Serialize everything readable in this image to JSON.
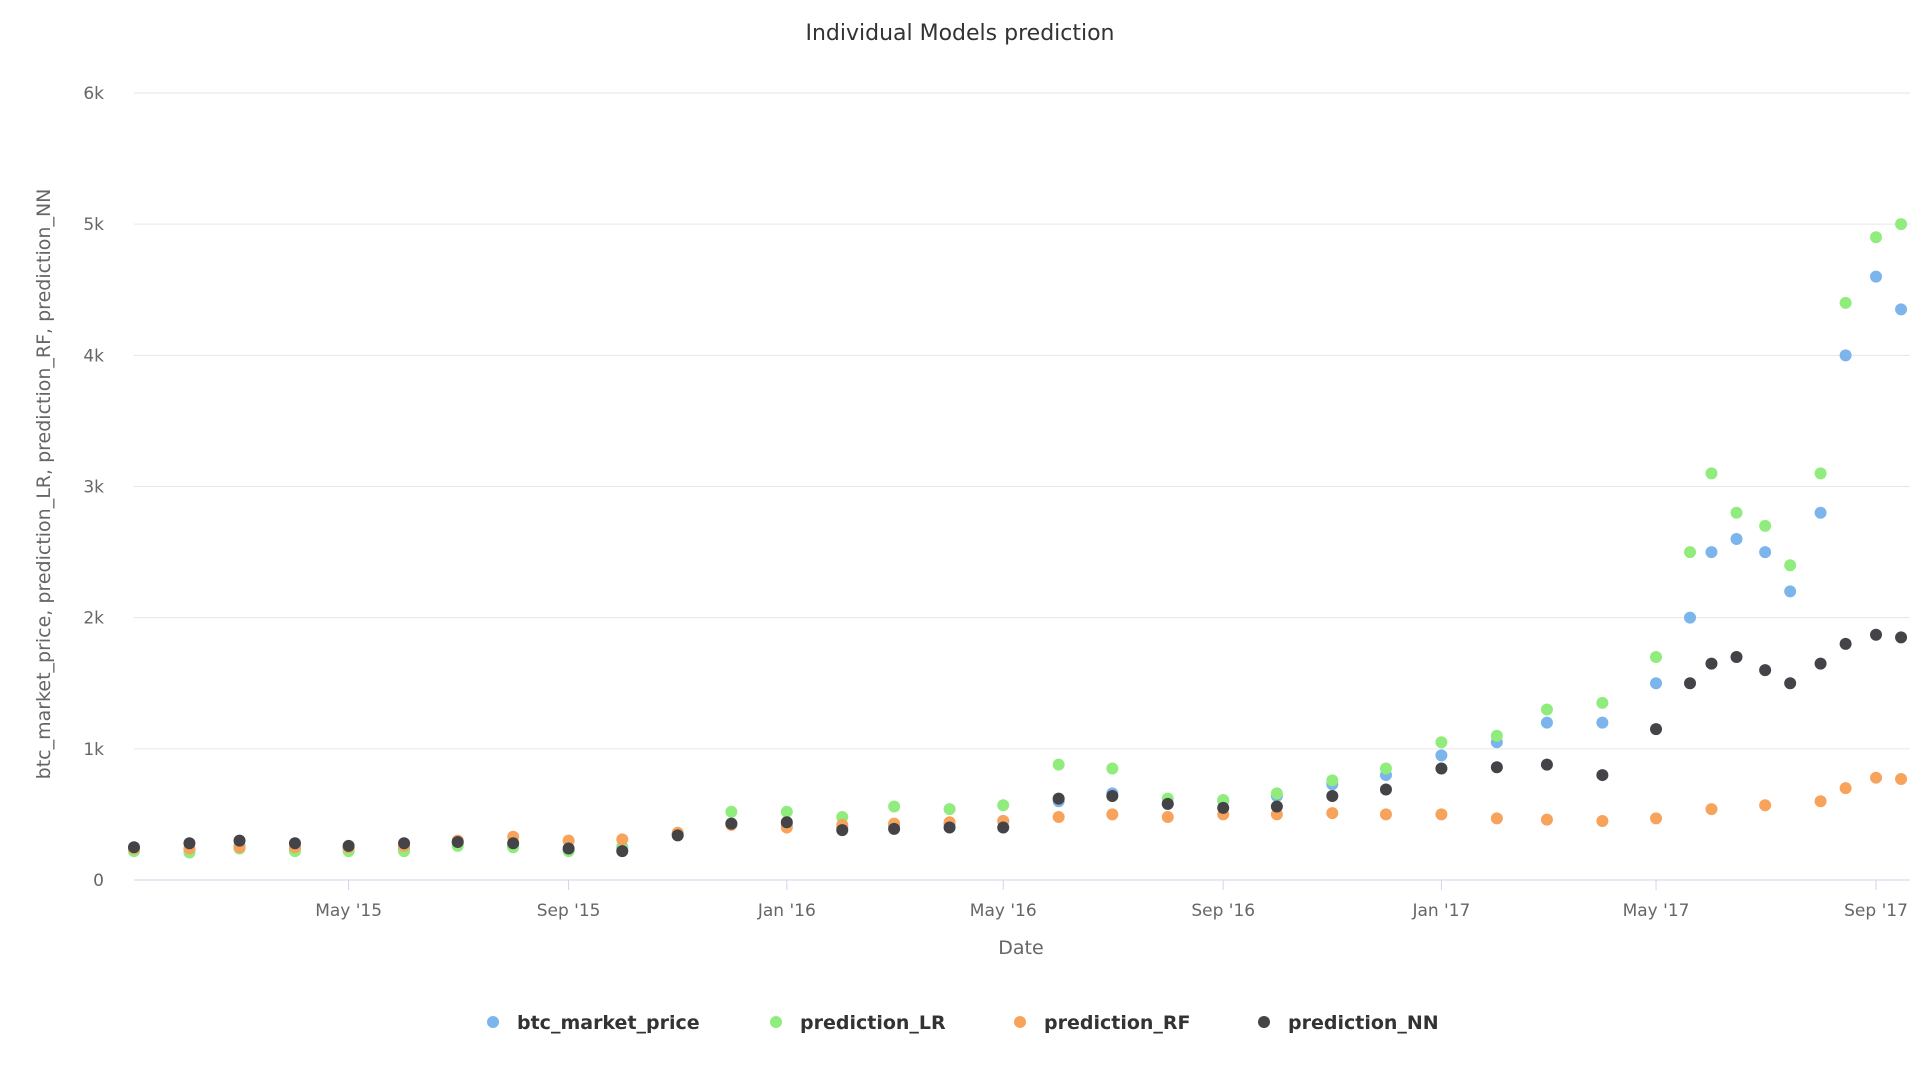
{
  "chart_data": {
    "type": "scatter",
    "title": "Individual Models prediction",
    "xlabel": "Date",
    "ylabel": "btc_market_price, prediction_LR, prediction_RF, prediction_NN",
    "x_range": [
      "2015-01-01",
      "2017-09-20"
    ],
    "ylim": [
      0,
      6000
    ],
    "y_ticks": [
      0,
      1000,
      2000,
      3000,
      4000,
      5000,
      6000
    ],
    "y_tick_labels": [
      "0",
      "1k",
      "2k",
      "3k",
      "4k",
      "5k",
      "6k"
    ],
    "x_ticks": [
      "2015-05-01",
      "2015-09-01",
      "2016-01-01",
      "2016-05-01",
      "2016-09-01",
      "2017-01-01",
      "2017-05-01",
      "2017-09-01"
    ],
    "x_tick_labels": [
      "May '15",
      "Sep '15",
      "Jan '16",
      "May '16",
      "Sep '16",
      "Jan '17",
      "May '17",
      "Sep '17"
    ],
    "grid": true,
    "legend_position": "bottom",
    "series": [
      {
        "name": "btc_market_price",
        "color": "#7cb5ec",
        "points": [
          [
            "2015-01-01",
            240
          ],
          [
            "2015-02-01",
            230
          ],
          [
            "2015-03-01",
            260
          ],
          [
            "2015-04-01",
            240
          ],
          [
            "2015-05-01",
            235
          ],
          [
            "2015-06-01",
            235
          ],
          [
            "2015-07-01",
            280
          ],
          [
            "2015-08-01",
            260
          ],
          [
            "2015-09-01",
            230
          ],
          [
            "2015-10-01",
            250
          ],
          [
            "2015-11-01",
            350
          ],
          [
            "2015-12-01",
            430
          ],
          [
            "2016-01-01",
            420
          ],
          [
            "2016-02-01",
            400
          ],
          [
            "2016-03-01",
            415
          ],
          [
            "2016-04-01",
            425
          ],
          [
            "2016-05-01",
            450
          ],
          [
            "2016-06-01",
            600
          ],
          [
            "2016-07-01",
            660
          ],
          [
            "2016-08-01",
            580
          ],
          [
            "2016-09-01",
            605
          ],
          [
            "2016-10-01",
            640
          ],
          [
            "2016-11-01",
            730
          ],
          [
            "2016-12-01",
            800
          ],
          [
            "2017-01-01",
            950
          ],
          [
            "2017-02-01",
            1050
          ],
          [
            "2017-03-01",
            1200
          ],
          [
            "2017-04-01",
            1200
          ],
          [
            "2017-05-01",
            1500
          ],
          [
            "2017-05-20",
            2000
          ],
          [
            "2017-06-01",
            2500
          ],
          [
            "2017-06-15",
            2600
          ],
          [
            "2017-07-01",
            2500
          ],
          [
            "2017-07-15",
            2200
          ],
          [
            "2017-08-01",
            2800
          ],
          [
            "2017-08-15",
            4000
          ],
          [
            "2017-09-01",
            4600
          ],
          [
            "2017-09-15",
            4350
          ]
        ]
      },
      {
        "name": "prediction_LR",
        "color": "#90ed7d",
        "points": [
          [
            "2015-01-01",
            220
          ],
          [
            "2015-02-01",
            210
          ],
          [
            "2015-03-01",
            240
          ],
          [
            "2015-04-01",
            220
          ],
          [
            "2015-05-01",
            220
          ],
          [
            "2015-06-01",
            220
          ],
          [
            "2015-07-01",
            260
          ],
          [
            "2015-08-01",
            250
          ],
          [
            "2015-09-01",
            220
          ],
          [
            "2015-10-01",
            240
          ],
          [
            "2015-11-01",
            350
          ],
          [
            "2015-12-01",
            520
          ],
          [
            "2016-01-01",
            520
          ],
          [
            "2016-02-01",
            480
          ],
          [
            "2016-03-01",
            560
          ],
          [
            "2016-04-01",
            540
          ],
          [
            "2016-05-01",
            570
          ],
          [
            "2016-06-01",
            880
          ],
          [
            "2016-07-01",
            850
          ],
          [
            "2016-08-01",
            620
          ],
          [
            "2016-09-01",
            610
          ],
          [
            "2016-10-01",
            660
          ],
          [
            "2016-11-01",
            760
          ],
          [
            "2016-12-01",
            850
          ],
          [
            "2017-01-01",
            1050
          ],
          [
            "2017-02-01",
            1100
          ],
          [
            "2017-03-01",
            1300
          ],
          [
            "2017-04-01",
            1350
          ],
          [
            "2017-05-01",
            1700
          ],
          [
            "2017-05-20",
            2500
          ],
          [
            "2017-06-01",
            3100
          ],
          [
            "2017-06-15",
            2800
          ],
          [
            "2017-07-01",
            2700
          ],
          [
            "2017-07-15",
            2400
          ],
          [
            "2017-08-01",
            3100
          ],
          [
            "2017-08-15",
            4400
          ],
          [
            "2017-09-01",
            4900
          ],
          [
            "2017-09-15",
            5000
          ]
        ]
      },
      {
        "name": "prediction_RF",
        "color": "#f7a35c",
        "points": [
          [
            "2015-01-01",
            240
          ],
          [
            "2015-02-01",
            240
          ],
          [
            "2015-03-01",
            250
          ],
          [
            "2015-04-01",
            250
          ],
          [
            "2015-05-01",
            250
          ],
          [
            "2015-06-01",
            260
          ],
          [
            "2015-07-01",
            300
          ],
          [
            "2015-08-01",
            330
          ],
          [
            "2015-09-01",
            300
          ],
          [
            "2015-10-01",
            310
          ],
          [
            "2015-11-01",
            360
          ],
          [
            "2015-12-01",
            420
          ],
          [
            "2016-01-01",
            400
          ],
          [
            "2016-02-01",
            420
          ],
          [
            "2016-03-01",
            430
          ],
          [
            "2016-04-01",
            440
          ],
          [
            "2016-05-01",
            450
          ],
          [
            "2016-06-01",
            480
          ],
          [
            "2016-07-01",
            500
          ],
          [
            "2016-08-01",
            480
          ],
          [
            "2016-09-01",
            500
          ],
          [
            "2016-10-01",
            500
          ],
          [
            "2016-11-01",
            510
          ],
          [
            "2016-12-01",
            500
          ],
          [
            "2017-01-01",
            500
          ],
          [
            "2017-02-01",
            470
          ],
          [
            "2017-03-01",
            460
          ],
          [
            "2017-04-01",
            450
          ],
          [
            "2017-05-01",
            470
          ],
          [
            "2017-06-01",
            540
          ],
          [
            "2017-07-01",
            570
          ],
          [
            "2017-08-01",
            600
          ],
          [
            "2017-08-15",
            700
          ],
          [
            "2017-09-01",
            780
          ],
          [
            "2017-09-15",
            770
          ]
        ]
      },
      {
        "name": "prediction_NN",
        "color": "#434348",
        "points": [
          [
            "2015-01-01",
            250
          ],
          [
            "2015-02-01",
            280
          ],
          [
            "2015-03-01",
            300
          ],
          [
            "2015-04-01",
            280
          ],
          [
            "2015-05-01",
            260
          ],
          [
            "2015-06-01",
            280
          ],
          [
            "2015-07-01",
            290
          ],
          [
            "2015-08-01",
            280
          ],
          [
            "2015-09-01",
            240
          ],
          [
            "2015-10-01",
            220
          ],
          [
            "2015-11-01",
            340
          ],
          [
            "2015-12-01",
            430
          ],
          [
            "2016-01-01",
            440
          ],
          [
            "2016-02-01",
            380
          ],
          [
            "2016-03-01",
            390
          ],
          [
            "2016-04-01",
            400
          ],
          [
            "2016-05-01",
            400
          ],
          [
            "2016-06-01",
            620
          ],
          [
            "2016-07-01",
            640
          ],
          [
            "2016-08-01",
            580
          ],
          [
            "2016-09-01",
            550
          ],
          [
            "2016-10-01",
            560
          ],
          [
            "2016-11-01",
            640
          ],
          [
            "2016-12-01",
            690
          ],
          [
            "2017-01-01",
            850
          ],
          [
            "2017-02-01",
            860
          ],
          [
            "2017-03-01",
            880
          ],
          [
            "2017-04-01",
            800
          ],
          [
            "2017-05-01",
            1150
          ],
          [
            "2017-05-20",
            1500
          ],
          [
            "2017-06-01",
            1650
          ],
          [
            "2017-06-15",
            1700
          ],
          [
            "2017-07-01",
            1600
          ],
          [
            "2017-07-15",
            1500
          ],
          [
            "2017-08-01",
            1650
          ],
          [
            "2017-08-15",
            1800
          ],
          [
            "2017-09-01",
            1870
          ],
          [
            "2017-09-15",
            1850
          ]
        ]
      }
    ]
  }
}
